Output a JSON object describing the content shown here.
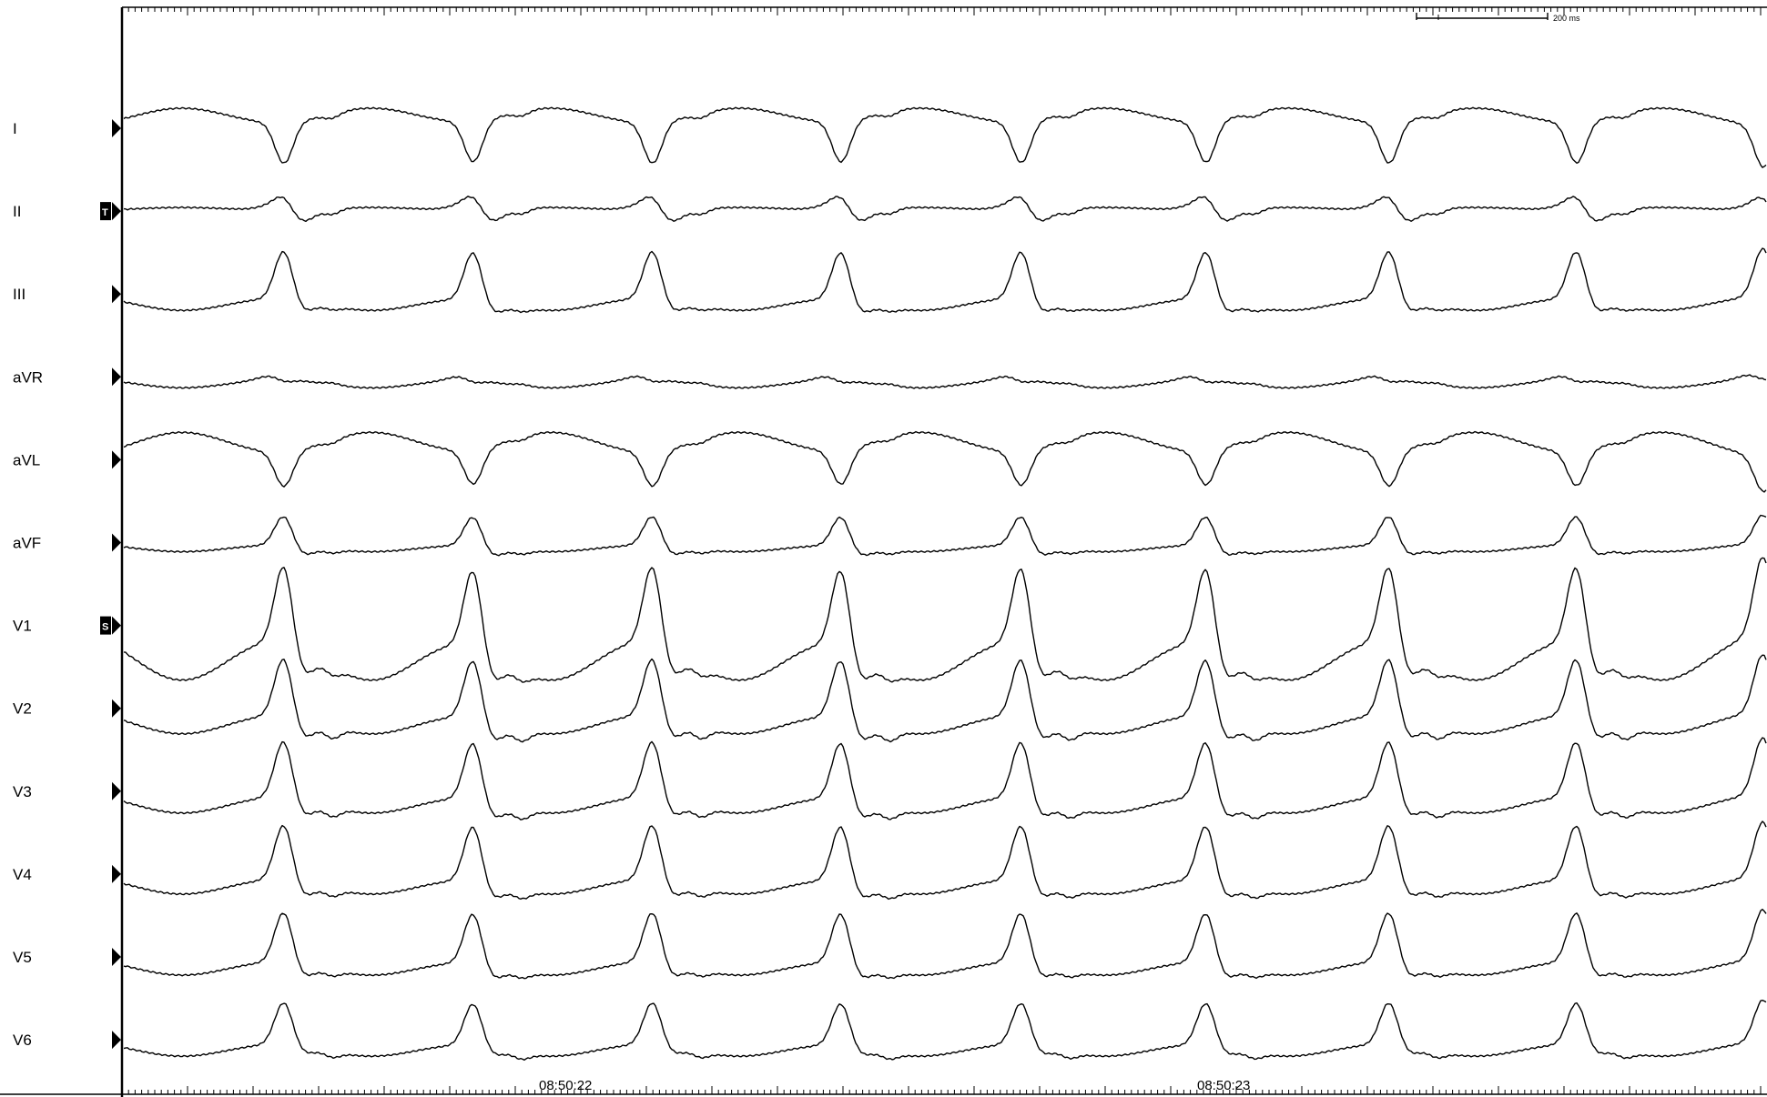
{
  "scale_bar": {
    "label": "200 ms"
  },
  "timestamps": [
    "08:50:22",
    "08:50:23"
  ],
  "leads": [
    {
      "name": "I",
      "marker": ""
    },
    {
      "name": "II",
      "marker": "T"
    },
    {
      "name": "III",
      "marker": ""
    },
    {
      "name": "aVR",
      "marker": ""
    },
    {
      "name": "aVL",
      "marker": ""
    },
    {
      "name": "aVF",
      "marker": ""
    },
    {
      "name": "V1",
      "marker": "S"
    },
    {
      "name": "V2",
      "marker": ""
    },
    {
      "name": "V3",
      "marker": ""
    },
    {
      "name": "V4",
      "marker": ""
    },
    {
      "name": "V5",
      "marker": ""
    },
    {
      "name": "V6",
      "marker": ""
    }
  ],
  "colors": {
    "trace": "#000000",
    "background": "#ffffff"
  }
}
